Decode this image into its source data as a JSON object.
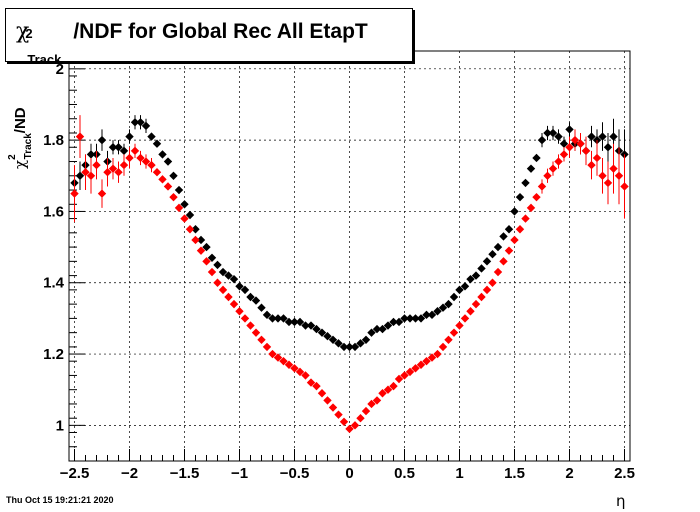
{
  "title": {
    "chi": "χ",
    "sup": "2",
    "sub": "Track",
    "rest": "/NDF for Global Rec All EtapT"
  },
  "axes": {
    "ylabel_chi": "χ",
    "ylabel_sup": "2",
    "ylabel_sub": "Track",
    "ylabel_rest": "/ND",
    "xlabel": "η",
    "xticks": [
      "−2.5",
      "−2",
      "−1.5",
      "−1",
      "−0.5",
      "0",
      "0.5",
      "1",
      "1.5",
      "2",
      "2.5"
    ],
    "yticks": [
      "1",
      "1.2",
      "1.4",
      "1.6",
      "1.8",
      "2"
    ]
  },
  "timestamp": "Thu Oct 15 19:21:21 2020",
  "colors": {
    "black_series": "#000000",
    "red_series": "#ff0000",
    "grid": "#000000"
  },
  "chart_data": {
    "type": "scatter",
    "xlim": [
      -2.55,
      2.55
    ],
    "ylim": [
      0.9,
      2.05
    ],
    "grid": true,
    "x": [
      -2.5,
      -2.45,
      -2.4,
      -2.35,
      -2.3,
      -2.25,
      -2.2,
      -2.15,
      -2.1,
      -2.05,
      -2.0,
      -1.95,
      -1.9,
      -1.85,
      -1.8,
      -1.75,
      -1.7,
      -1.65,
      -1.6,
      -1.55,
      -1.5,
      -1.45,
      -1.4,
      -1.35,
      -1.3,
      -1.25,
      -1.2,
      -1.15,
      -1.1,
      -1.05,
      -1.0,
      -0.95,
      -0.9,
      -0.85,
      -0.8,
      -0.75,
      -0.7,
      -0.65,
      -0.6,
      -0.55,
      -0.5,
      -0.45,
      -0.4,
      -0.35,
      -0.3,
      -0.25,
      -0.2,
      -0.15,
      -0.1,
      -0.05,
      0.0,
      0.05,
      0.1,
      0.15,
      0.2,
      0.25,
      0.3,
      0.35,
      0.4,
      0.45,
      0.5,
      0.55,
      0.6,
      0.65,
      0.7,
      0.75,
      0.8,
      0.85,
      0.9,
      0.95,
      1.0,
      1.05,
      1.1,
      1.15,
      1.2,
      1.25,
      1.3,
      1.35,
      1.4,
      1.45,
      1.5,
      1.55,
      1.6,
      1.65,
      1.7,
      1.75,
      1.8,
      1.85,
      1.9,
      1.95,
      2.0,
      2.05,
      2.1,
      2.15,
      2.2,
      2.25,
      2.3,
      2.35,
      2.4,
      2.45,
      2.5
    ],
    "series": [
      {
        "color": "#000000",
        "values": [
          1.68,
          1.7,
          1.73,
          1.76,
          1.76,
          1.8,
          1.74,
          1.78,
          1.78,
          1.77,
          1.81,
          1.85,
          1.85,
          1.84,
          1.81,
          1.79,
          1.76,
          1.74,
          1.7,
          1.66,
          1.62,
          1.59,
          1.55,
          1.52,
          1.5,
          1.47,
          1.45,
          1.43,
          1.42,
          1.41,
          1.39,
          1.38,
          1.36,
          1.35,
          1.33,
          1.31,
          1.3,
          1.3,
          1.3,
          1.29,
          1.29,
          1.29,
          1.28,
          1.28,
          1.27,
          1.26,
          1.25,
          1.24,
          1.23,
          1.22,
          1.22,
          1.22,
          1.23,
          1.24,
          1.26,
          1.27,
          1.27,
          1.28,
          1.29,
          1.29,
          1.3,
          1.3,
          1.3,
          1.3,
          1.31,
          1.31,
          1.32,
          1.33,
          1.34,
          1.36,
          1.38,
          1.39,
          1.41,
          1.42,
          1.44,
          1.46,
          1.48,
          1.5,
          1.53,
          1.55,
          1.6,
          1.64,
          1.68,
          1.72,
          1.75,
          1.8,
          1.82,
          1.82,
          1.81,
          1.79,
          1.83,
          1.79,
          1.79,
          1.77,
          1.81,
          1.8,
          1.81,
          1.78,
          1.81,
          1.77,
          1.76
        ],
        "errors": [
          0.04,
          0.04,
          0.03,
          0.03,
          0.03,
          0.03,
          0.03,
          0.02,
          0.02,
          0.02,
          0.02,
          0.02,
          0.02,
          0.02,
          0.01,
          0.01,
          0.01,
          0.01,
          0.01,
          0.01,
          0.01,
          0.01,
          0.01,
          0.01,
          0.01,
          0.01,
          0.01,
          0.01,
          0.01,
          0.01,
          0.01,
          0.01,
          0.01,
          0.01,
          0.01,
          0.01,
          0.01,
          0.01,
          0.01,
          0.01,
          0.01,
          0.01,
          0.01,
          0.01,
          0.01,
          0.01,
          0.01,
          0.01,
          0.01,
          0.01,
          0.01,
          0.01,
          0.01,
          0.01,
          0.01,
          0.01,
          0.01,
          0.01,
          0.01,
          0.01,
          0.01,
          0.01,
          0.01,
          0.01,
          0.01,
          0.01,
          0.01,
          0.01,
          0.01,
          0.01,
          0.01,
          0.01,
          0.01,
          0.01,
          0.01,
          0.01,
          0.01,
          0.01,
          0.01,
          0.01,
          0.01,
          0.01,
          0.01,
          0.01,
          0.01,
          0.02,
          0.02,
          0.02,
          0.02,
          0.02,
          0.02,
          0.02,
          0.03,
          0.03,
          0.03,
          0.03,
          0.04,
          0.04,
          0.05,
          0.06,
          0.07
        ]
      },
      {
        "color": "#ff0000",
        "values": [
          1.65,
          1.81,
          1.71,
          1.7,
          1.73,
          1.65,
          1.71,
          1.72,
          1.71,
          1.73,
          1.75,
          1.77,
          1.75,
          1.74,
          1.73,
          1.71,
          1.69,
          1.67,
          1.64,
          1.61,
          1.58,
          1.55,
          1.52,
          1.49,
          1.46,
          1.43,
          1.4,
          1.38,
          1.36,
          1.34,
          1.32,
          1.3,
          1.28,
          1.26,
          1.24,
          1.22,
          1.2,
          1.19,
          1.18,
          1.17,
          1.16,
          1.15,
          1.14,
          1.12,
          1.11,
          1.09,
          1.07,
          1.05,
          1.03,
          1.01,
          0.99,
          1.0,
          1.02,
          1.04,
          1.06,
          1.07,
          1.09,
          1.1,
          1.11,
          1.13,
          1.14,
          1.15,
          1.16,
          1.17,
          1.18,
          1.19,
          1.2,
          1.22,
          1.24,
          1.26,
          1.28,
          1.3,
          1.32,
          1.34,
          1.36,
          1.38,
          1.4,
          1.43,
          1.46,
          1.49,
          1.52,
          1.55,
          1.58,
          1.61,
          1.64,
          1.67,
          1.7,
          1.72,
          1.74,
          1.76,
          1.78,
          1.8,
          1.79,
          1.77,
          1.73,
          1.75,
          1.7,
          1.68,
          1.72,
          1.7,
          1.67
        ],
        "errors": [
          0.08,
          0.06,
          0.05,
          0.05,
          0.04,
          0.04,
          0.04,
          0.03,
          0.03,
          0.03,
          0.03,
          0.02,
          0.02,
          0.02,
          0.02,
          0.01,
          0.01,
          0.01,
          0.01,
          0.01,
          0.01,
          0.01,
          0.01,
          0.01,
          0.01,
          0.01,
          0.01,
          0.01,
          0.01,
          0.01,
          0.01,
          0.01,
          0.01,
          0.01,
          0.01,
          0.01,
          0.01,
          0.01,
          0.01,
          0.01,
          0.01,
          0.01,
          0.01,
          0.01,
          0.01,
          0.01,
          0.01,
          0.01,
          0.01,
          0.01,
          0.01,
          0.01,
          0.01,
          0.01,
          0.01,
          0.01,
          0.01,
          0.01,
          0.01,
          0.01,
          0.01,
          0.01,
          0.01,
          0.01,
          0.01,
          0.01,
          0.01,
          0.01,
          0.01,
          0.01,
          0.01,
          0.01,
          0.01,
          0.01,
          0.01,
          0.01,
          0.01,
          0.01,
          0.01,
          0.01,
          0.01,
          0.01,
          0.01,
          0.01,
          0.01,
          0.02,
          0.02,
          0.02,
          0.02,
          0.02,
          0.03,
          0.03,
          0.03,
          0.04,
          0.04,
          0.05,
          0.05,
          0.06,
          0.07,
          0.08,
          0.09
        ]
      }
    ]
  }
}
